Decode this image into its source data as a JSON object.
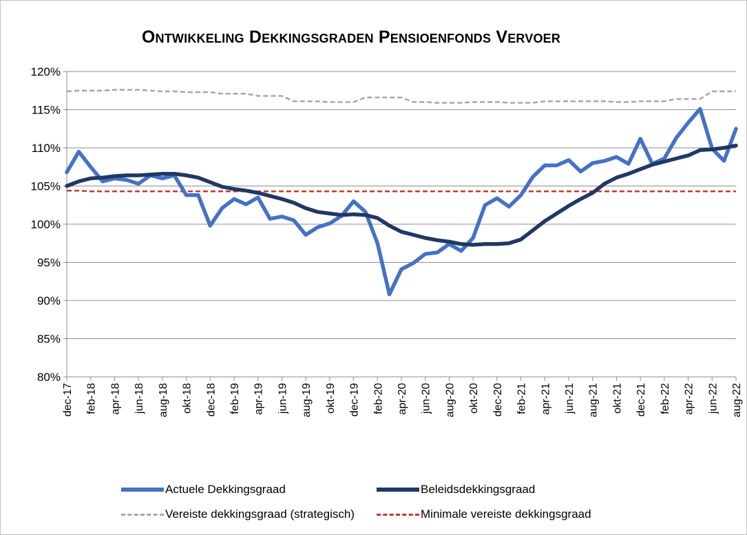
{
  "chart_data": {
    "type": "line",
    "title": "Ontwikkeling Dekkingsgraden Pensioenfonds Vervoer",
    "ylim": [
      80,
      120
    ],
    "y_ticks": [
      "80%",
      "85%",
      "90%",
      "95%",
      "100%",
      "105%",
      "110%",
      "115%",
      "120%"
    ],
    "grid": true,
    "legend_position": "bottom",
    "x": [
      "dec-17",
      "jan-18",
      "feb-18",
      "mrt-18",
      "apr-18",
      "mei-18",
      "jun-18",
      "jul-18",
      "aug-18",
      "sep-18",
      "okt-18",
      "nov-18",
      "dec-18",
      "jan-19",
      "feb-19",
      "mrt-19",
      "apr-19",
      "mei-19",
      "jun-19",
      "jul-19",
      "aug-19",
      "sep-19",
      "okt-19",
      "nov-19",
      "dec-19",
      "jan-20",
      "feb-20",
      "mrt-20",
      "apr-20",
      "mei-20",
      "jun-20",
      "jul-20",
      "aug-20",
      "sep-20",
      "okt-20",
      "nov-20",
      "dec-20",
      "jan-21",
      "feb-21",
      "mrt-21",
      "apr-21",
      "mei-21",
      "jun-21",
      "jul-21",
      "aug-21",
      "sep-21",
      "okt-21",
      "nov-21",
      "dec-21",
      "jan-22",
      "feb-22",
      "mrt-22",
      "apr-22",
      "mei-22",
      "jun-22",
      "jul-22",
      "aug-22"
    ],
    "x_tick_labels": [
      "dec-17",
      "feb-18",
      "apr-18",
      "jun-18",
      "aug-18",
      "okt-18",
      "dec-18",
      "feb-19",
      "apr-19",
      "jun-19",
      "aug-19",
      "okt-19",
      "dec-19",
      "feb-20",
      "apr-20",
      "jun-20",
      "aug-20",
      "okt-20",
      "dec-20",
      "feb-21",
      "apr-21",
      "jun-21",
      "aug-21",
      "okt-21",
      "dec-21",
      "feb-22",
      "apr-22",
      "jun-22",
      "aug-22"
    ],
    "series": [
      {
        "name": "Actuele Dekkingsgraad",
        "color": "#4472c4",
        "style": "solid-thick",
        "values": [
          106.8,
          109.5,
          107.5,
          105.6,
          106.0,
          105.8,
          105.3,
          106.4,
          106.0,
          106.4,
          103.8,
          103.8,
          99.8,
          102.1,
          103.3,
          102.6,
          103.5,
          100.7,
          101.0,
          100.5,
          98.6,
          99.6,
          100.1,
          101.1,
          103.0,
          101.6,
          97.5,
          90.8,
          94.1,
          94.9,
          96.1,
          96.3,
          97.4,
          96.5,
          98.2,
          102.5,
          103.4,
          102.3,
          103.8,
          106.2,
          107.7,
          107.7,
          108.4,
          106.9,
          108.0,
          108.3,
          108.8,
          107.9,
          111.2,
          107.9,
          108.6,
          111.3,
          113.3,
          115.1,
          109.9,
          108.3,
          112.5
        ]
      },
      {
        "name": "Beleidsdekkingsgraad",
        "color": "#1f3864",
        "style": "solid-thick",
        "values": [
          105.0,
          105.6,
          106.0,
          106.1,
          106.3,
          106.4,
          106.4,
          106.5,
          106.6,
          106.6,
          106.4,
          106.1,
          105.5,
          104.9,
          104.6,
          104.4,
          104.1,
          103.7,
          103.3,
          102.8,
          102.1,
          101.6,
          101.4,
          101.2,
          101.3,
          101.2,
          100.8,
          99.8,
          99.0,
          98.6,
          98.2,
          97.9,
          97.7,
          97.4,
          97.3,
          97.4,
          97.4,
          97.5,
          98.0,
          99.2,
          100.4,
          101.4,
          102.4,
          103.3,
          104.1,
          105.3,
          106.1,
          106.6,
          107.2,
          107.8,
          108.2,
          108.6,
          109.0,
          109.7,
          109.8,
          110.0,
          110.3
        ]
      },
      {
        "name": "Vereiste dekkingsgraad (strategisch)",
        "color": "#a6a6a6",
        "style": "dashed",
        "values": [
          117.4,
          117.5,
          117.5,
          117.5,
          117.6,
          117.6,
          117.6,
          117.5,
          117.4,
          117.4,
          117.3,
          117.3,
          117.3,
          117.1,
          117.1,
          117.1,
          116.8,
          116.8,
          116.8,
          116.1,
          116.1,
          116.1,
          116.0,
          116.0,
          116.0,
          116.6,
          116.6,
          116.6,
          116.6,
          116.0,
          116.0,
          115.9,
          115.9,
          115.9,
          116.0,
          116.0,
          116.0,
          115.9,
          115.9,
          115.9,
          116.1,
          116.1,
          116.1,
          116.1,
          116.1,
          116.1,
          116.0,
          116.0,
          116.1,
          116.1,
          116.1,
          116.4,
          116.4,
          116.4,
          117.4,
          117.4,
          117.4
        ]
      },
      {
        "name": "Minimale vereiste dekkingsgraad",
        "color": "#c0392b",
        "style": "dashed",
        "values": [
          104.4,
          104.4,
          104.3,
          104.3,
          104.3,
          104.3,
          104.3,
          104.3,
          104.3,
          104.3,
          104.3,
          104.3,
          104.3,
          104.3,
          104.3,
          104.3,
          104.3,
          104.3,
          104.3,
          104.3,
          104.3,
          104.3,
          104.3,
          104.3,
          104.3,
          104.3,
          104.3,
          104.3,
          104.3,
          104.3,
          104.3,
          104.3,
          104.3,
          104.3,
          104.3,
          104.3,
          104.3,
          104.3,
          104.3,
          104.3,
          104.3,
          104.3,
          104.3,
          104.3,
          104.3,
          104.3,
          104.3,
          104.3,
          104.3,
          104.3,
          104.3,
          104.3,
          104.3,
          104.3,
          104.3,
          104.3,
          104.3
        ]
      }
    ]
  },
  "legend": [
    {
      "label": "Actuele Dekkingsgraad",
      "color": "#4472c4",
      "style": "solid-thick"
    },
    {
      "label": "Beleidsdekkingsgraad",
      "color": "#1f3864",
      "style": "solid-thick"
    },
    {
      "label": "Vereiste dekkingsgraad (strategisch)",
      "color": "#a6a6a6",
      "style": "dashed"
    },
    {
      "label": "Minimale vereiste dekkingsgraad",
      "color": "#c0392b",
      "style": "dashed"
    }
  ]
}
